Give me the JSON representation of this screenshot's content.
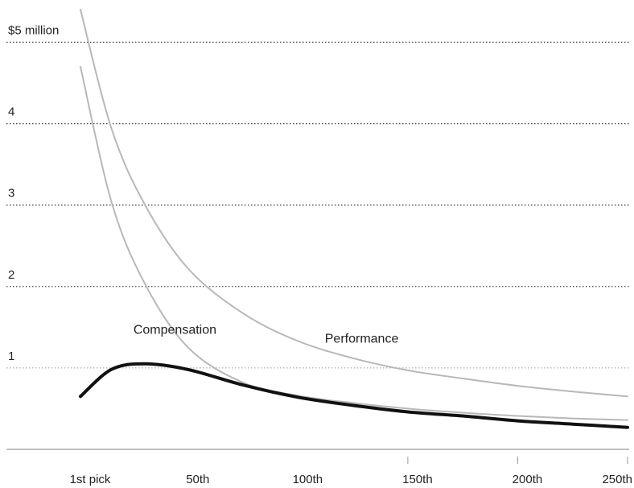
{
  "chart_data": {
    "type": "line",
    "title": "",
    "xlabel": "",
    "ylabel": "",
    "x": [
      1,
      15,
      30,
      50,
      75,
      100,
      125,
      150,
      175,
      200,
      225,
      250
    ],
    "x_ticks": [
      {
        "value": 1,
        "label": "1st pick"
      },
      {
        "value": 50,
        "label": "50th"
      },
      {
        "value": 100,
        "label": "100th"
      },
      {
        "value": 150,
        "label": "150th"
      },
      {
        "value": 200,
        "label": "200th"
      },
      {
        "value": 250,
        "label": "250th"
      }
    ],
    "y_ticks": [
      {
        "value": 1,
        "label": "1"
      },
      {
        "value": 2,
        "label": "2"
      },
      {
        "value": 3,
        "label": "3"
      },
      {
        "value": 4,
        "label": "4"
      },
      {
        "value": 5,
        "label": "$5 million"
      }
    ],
    "xlim": [
      1,
      250
    ],
    "ylim": [
      0,
      5.4
    ],
    "grid": "horizontal dotted",
    "series": [
      {
        "key": "performance",
        "values": [
          5.4,
          3.95,
          3.02,
          2.22,
          1.67,
          1.33,
          1.12,
          0.97,
          0.87,
          0.78,
          0.71,
          0.65
        ]
      },
      {
        "key": "compensation",
        "values": [
          4.7,
          3.05,
          2.05,
          1.25,
          0.82,
          0.66,
          0.57,
          0.5,
          0.45,
          0.41,
          0.38,
          0.36
        ]
      },
      {
        "key": "surplus",
        "values": [
          0.65,
          0.98,
          1.05,
          0.98,
          0.79,
          0.64,
          0.54,
          0.46,
          0.41,
          0.35,
          0.31,
          0.27
        ]
      }
    ],
    "annotations": [
      {
        "text": "Compensation",
        "x": 44,
        "y": 1.42
      },
      {
        "text": "Performance",
        "x": 129,
        "y": 1.31
      }
    ],
    "colors": {
      "performance": "#b8b8b8",
      "compensation": "#b8b8b8",
      "surplus": "#111111",
      "grid": "#444444",
      "axis": "#999999"
    }
  }
}
